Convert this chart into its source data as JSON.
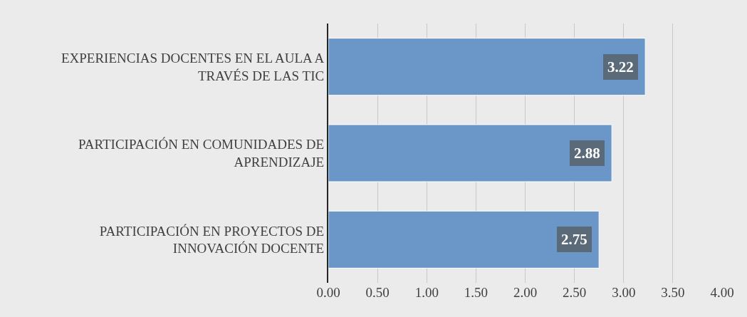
{
  "chart_data": {
    "type": "bar",
    "orientation": "horizontal",
    "categories": [
      "EXPERIENCIAS DOCENTES EN EL AULA A TRAVÉS DE LAS TIC",
      "PARTICIPACIÓN EN COMUNIDADES DE APRENDIZAJE",
      "PARTICIPACIÓN EN PROYECTOS DE INNOVACIÓN DOCENTE"
    ],
    "values": [
      3.22,
      2.88,
      2.75
    ],
    "color": "#6a96c8",
    "xlim": [
      0,
      4
    ],
    "xticks": [
      {
        "value": 0,
        "label": "0.00"
      },
      {
        "value": 0.5,
        "label": "0.50"
      },
      {
        "value": 1,
        "label": "1.00"
      },
      {
        "value": 1.5,
        "label": "1.50"
      },
      {
        "value": 2,
        "label": "2.00"
      },
      {
        "value": 2.5,
        "label": "2.50"
      },
      {
        "value": 3,
        "label": "3.00"
      },
      {
        "value": 3.5,
        "label": "3.50"
      },
      {
        "value": 4,
        "label": "4.00"
      }
    ],
    "grid": "x",
    "data_labels": true
  }
}
